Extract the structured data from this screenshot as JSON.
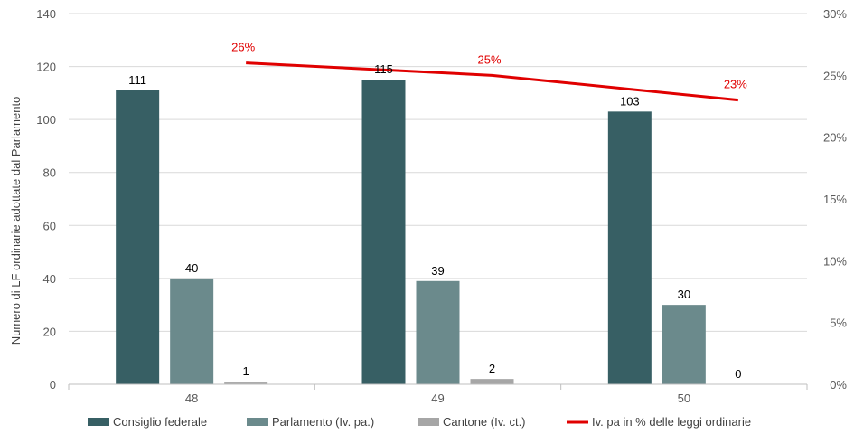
{
  "chart_data": {
    "type": "bar",
    "categories": [
      "48",
      "49",
      "50"
    ],
    "series": [
      {
        "name": "Consiglio federale",
        "values": [
          111,
          115,
          103
        ],
        "color": "#375f64"
      },
      {
        "name": "Parlamento (Iv. pa.)",
        "values": [
          40,
          39,
          30
        ],
        "color": "#6b8a8c"
      },
      {
        "name": "Cantone (Iv. ct.)",
        "values": [
          1,
          2,
          0
        ],
        "color": "#a6a6a6"
      }
    ],
    "line_series": {
      "name": "Iv. pa in % delle leggi ordinarie",
      "values": [
        26,
        25,
        23
      ],
      "labels": [
        "26%",
        "25%",
        "23%"
      ],
      "color": "#e00000",
      "axis": "right"
    },
    "ylabel": "Numero di LF ordinarie adottate dal Parlamento",
    "ylim": [
      0,
      140
    ],
    "yticks": [
      "0",
      "20",
      "40",
      "60",
      "80",
      "100",
      "120",
      "140"
    ],
    "y2lim": [
      0,
      30
    ],
    "y2ticks": [
      "0%",
      "5%",
      "10%",
      "15%",
      "20%",
      "25%",
      "30%"
    ],
    "grid": true,
    "legend_position": "bottom"
  }
}
